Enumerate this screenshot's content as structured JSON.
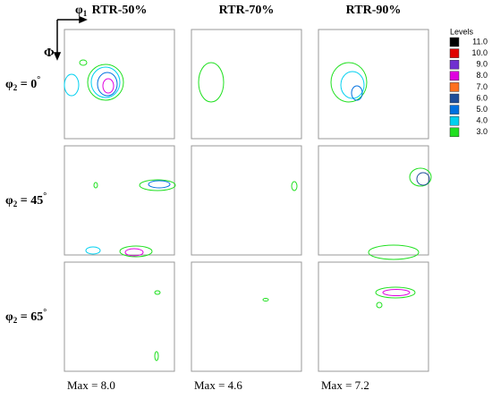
{
  "column_titles": [
    "RTR-50%",
    "RTR-70%",
    "RTR-90%"
  ],
  "axis_labels": {
    "phi1": {
      "symbol": "φ",
      "subscript": "1"
    },
    "Phi": "Φ"
  },
  "row_labels": [
    {
      "symbol": "φ",
      "subscript": "2",
      "text": " = 0",
      "superscript": "°"
    },
    {
      "symbol": "φ",
      "subscript": "2",
      "text": " = 45",
      "superscript": "°"
    },
    {
      "symbol": "φ",
      "subscript": "2",
      "text": " = 65",
      "superscript": "°"
    }
  ],
  "legend": {
    "title": "Levels",
    "items": [
      {
        "label": "11.0",
        "color": "#000000"
      },
      {
        "label": "10.0",
        "color": "#e00000"
      },
      {
        "label": "9.0",
        "color": "#7030d0"
      },
      {
        "label": "8.0",
        "color": "#e000e0"
      },
      {
        "label": "7.0",
        "color": "#ff7020"
      },
      {
        "label": "6.0",
        "color": "#1f4e99"
      },
      {
        "label": "5.0",
        "color": "#0070e0"
      },
      {
        "label": "4.0",
        "color": "#00d0f0"
      },
      {
        "label": "3.0",
        "color": "#20e020"
      }
    ]
  },
  "max_labels": [
    "Max = 8.0",
    "Max = 4.6",
    "Max = 7.2"
  ]
}
